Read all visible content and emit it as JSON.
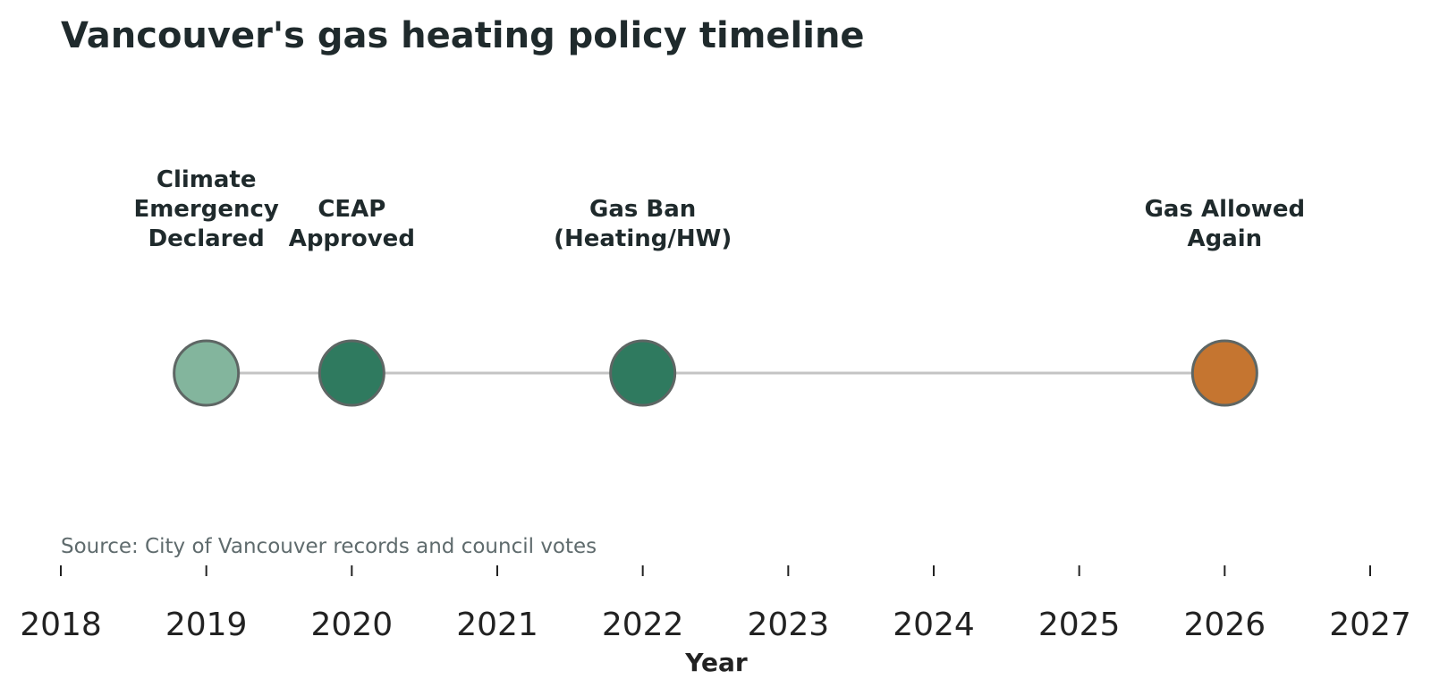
{
  "chart_data": {
    "type": "scatter",
    "title": "Vancouver's gas heating policy timeline",
    "xlabel": "Year",
    "ylabel": "",
    "xlim": [
      2018,
      2027
    ],
    "xticks": [
      2018,
      2019,
      2020,
      2021,
      2022,
      2023,
      2024,
      2025,
      2026,
      2027
    ],
    "grid": false,
    "source": "Source: City of Vancouver records and council votes",
    "events": [
      {
        "year": 2019,
        "label_lines": [
          "Climate",
          "Emergency",
          "Declared"
        ],
        "color": "#83b59d"
      },
      {
        "year": 2020,
        "label_lines": [
          "CEAP",
          "Approved"
        ],
        "color": "#2f7a5f"
      },
      {
        "year": 2022,
        "label_lines": [
          "Gas Ban",
          "(Heating/HW)"
        ],
        "color": "#2f7a5f"
      },
      {
        "year": 2026,
        "label_lines": [
          "Gas Allowed",
          "Again"
        ],
        "color": "#c57530"
      }
    ],
    "line_color": "#c4c4c4",
    "marker_edge_color": "#5e6664"
  }
}
